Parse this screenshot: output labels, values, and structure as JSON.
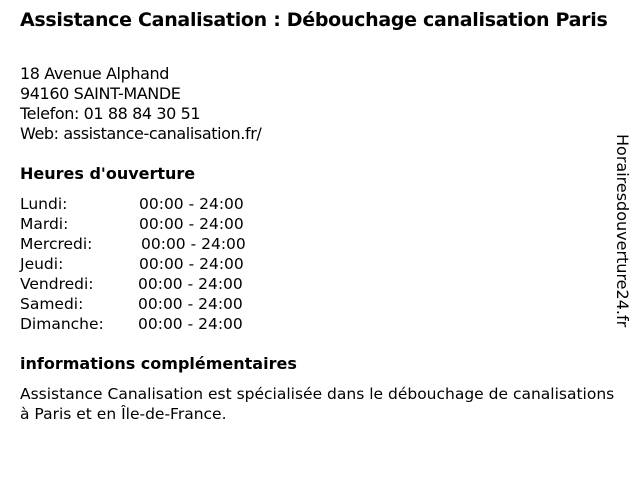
{
  "title": "Assistance Canalisation : Débouchage canalisation Paris",
  "address": {
    "street": "18 Avenue Alphand",
    "city": "94160 SAINT-MANDE",
    "phone": "Telefon: 01 88 84 30 51",
    "web": "Web: assistance-canalisation.fr/"
  },
  "hours_heading": "Heures d'ouverture",
  "hours": [
    {
      "day": "Lundi:",
      "time": "00:00 - 24:00"
    },
    {
      "day": "Mardi:",
      "time": "00:00 - 24:00"
    },
    {
      "day": "Mercredi:",
      "time": "00:00 - 24:00"
    },
    {
      "day": "Jeudi:",
      "time": "00:00 - 24:00"
    },
    {
      "day": "Vendredi:",
      "time": "00:00 - 24:00"
    },
    {
      "day": "Samedi:",
      "time": "00:00 - 24:00"
    },
    {
      "day": "Dimanche:",
      "time": "00:00 - 24:00"
    }
  ],
  "info_heading": "informations complémentaires",
  "info_text": "Assistance Canalisation est spécialisée dans le débouchage de canalisations à Paris et en Île-de-France.",
  "watermark": "Horairesdouverture24.fr"
}
